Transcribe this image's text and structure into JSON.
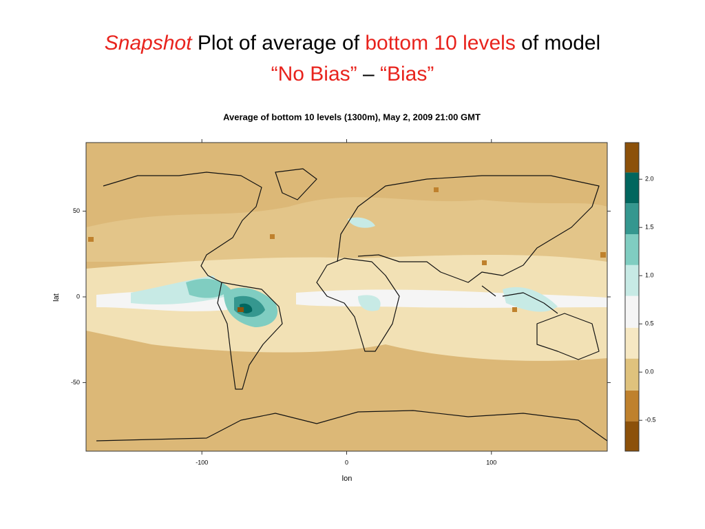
{
  "slide": {
    "title": {
      "lines": [
        [
          {
            "text": "Snapshot",
            "color": "#e8231d",
            "italic": true
          },
          {
            "text": " Plot of average of ",
            "color": "#000000",
            "italic": false
          },
          {
            "text": "bottom 10 levels",
            "color": "#e8231d",
            "italic": false
          },
          {
            "text": " of model",
            "color": "#000000",
            "italic": false
          }
        ],
        [
          {
            "text": "“No Bias”",
            "color": "#e8231d",
            "italic": false
          },
          {
            "text": " – ",
            "color": "#000000",
            "italic": false
          },
          {
            "text": "“Bias”",
            "color": "#e8231d",
            "italic": false
          }
        ]
      ]
    }
  },
  "chart_data": {
    "type": "map-heatmap",
    "title": "Average of bottom 10 levels (1300m), May 2, 2009 21:00 GMT",
    "x_label": "lon",
    "y_label": "lat",
    "xlim": [
      -180,
      180
    ],
    "ylim": [
      -90,
      90
    ],
    "xticks": [
      -100,
      0,
      100
    ],
    "yticks": [
      -50,
      0,
      50
    ],
    "colorbar": {
      "breaks": [
        -0.82,
        -0.51,
        -0.19,
        0.14,
        0.46,
        0.79,
        1.11,
        1.43,
        1.75,
        2.07,
        2.38
      ],
      "colors": [
        "#8c510a",
        "#bf812d",
        "#dfc27d",
        "#f6e8c3",
        "#f5f5f5",
        "#c7eae5",
        "#80cdc1",
        "#35978f",
        "#01665e",
        "#8c510a"
      ],
      "ticks": [
        -0.5,
        {
          "value": 0,
          "label": "0.0"
        },
        0.5,
        {
          "value": 1,
          "label": "1.0"
        },
        1.5,
        {
          "value": 2,
          "label": "2.0"
        }
      ]
    }
  }
}
